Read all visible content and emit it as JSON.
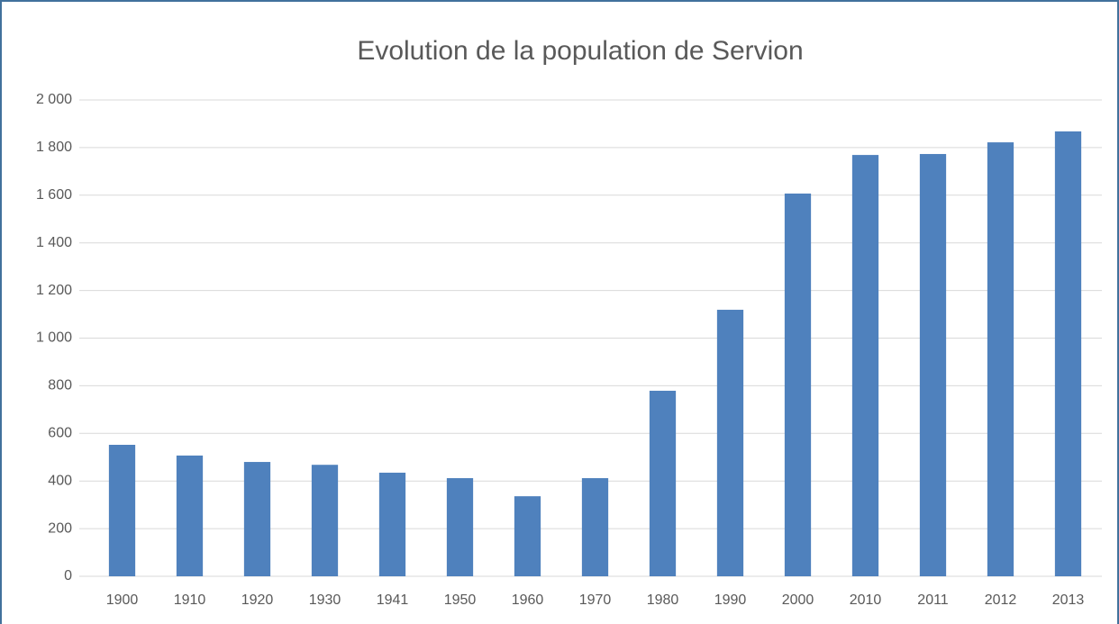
{
  "chart_data": {
    "type": "bar",
    "title": "Evolution de la population de Servion",
    "categories": [
      "1900",
      "1910",
      "1920",
      "1930",
      "1941",
      "1950",
      "1960",
      "1970",
      "1980",
      "1990",
      "2000",
      "2010",
      "2011",
      "2012",
      "2013"
    ],
    "values": [
      552,
      507,
      480,
      468,
      435,
      412,
      336,
      412,
      779,
      1119,
      1607,
      1769,
      1773,
      1822,
      1868
    ],
    "color": "#4f81bd",
    "ylim": [
      0,
      2000
    ],
    "yticks": [
      0,
      200,
      400,
      600,
      800,
      {
        "value": 1000,
        "label": "1 000"
      },
      {
        "value": 1200,
        "label": "1 200"
      },
      {
        "value": 1400,
        "label": "1 400"
      },
      {
        "value": 1600,
        "label": "1 600"
      },
      {
        "value": 1800,
        "label": "1 800"
      },
      {
        "value": 2000,
        "label": "2 000"
      }
    ],
    "grid": true
  }
}
